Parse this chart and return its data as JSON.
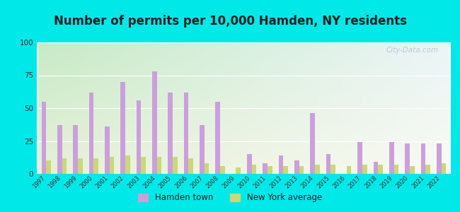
{
  "title": "Number of permits per 10,000 Hamden, NY residents",
  "years": [
    1997,
    1998,
    1999,
    2000,
    2001,
    2002,
    2003,
    2004,
    2005,
    2006,
    2007,
    2008,
    2009,
    2010,
    2011,
    2012,
    2013,
    2014,
    2015,
    2016,
    2017,
    2018,
    2019,
    2020,
    2021,
    2022
  ],
  "hamden": [
    55,
    37,
    37,
    62,
    36,
    70,
    56,
    78,
    62,
    62,
    37,
    55,
    0,
    15,
    8,
    14,
    10,
    46,
    15,
    0,
    24,
    9,
    24,
    23,
    23,
    23
  ],
  "ny_avg": [
    10,
    12,
    12,
    12,
    13,
    14,
    13,
    13,
    13,
    12,
    8,
    6,
    5,
    7,
    6,
    6,
    6,
    7,
    7,
    6,
    7,
    7,
    7,
    6,
    7,
    8
  ],
  "hamden_color": "#c9a0dc",
  "ny_avg_color": "#c8d87a",
  "bg_outer": "#00e8e8",
  "bg_plot_tl": "#c8e8c8",
  "bg_plot_tr": "#e8f4f8",
  "bg_plot_bl": "#e8f0d8",
  "bg_plot_br": "#f8f8f0",
  "ylim": [
    0,
    100
  ],
  "yticks": [
    0,
    25,
    50,
    75,
    100
  ],
  "legend_hamden": "Hamden town",
  "legend_ny": "New York average",
  "title_fontsize": 12,
  "watermark": "City-Data.com"
}
